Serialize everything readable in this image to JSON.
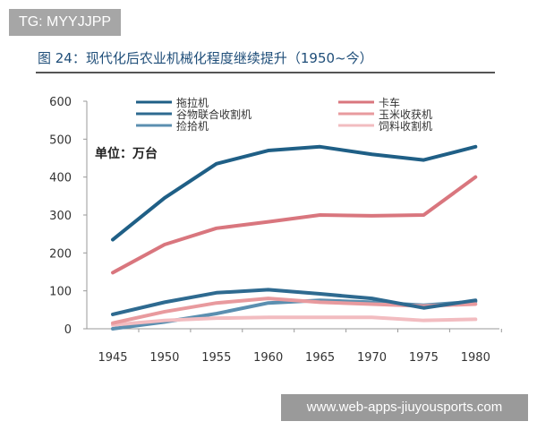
{
  "watermark_top": "TG: MYYJJPP",
  "watermark_bottom": "www.web-apps-jiuyousports.com",
  "chart_data": {
    "type": "line",
    "title": "图 24：现代化后农业机械化程度继续提升（1950~今）",
    "unit_label": "单位：万台",
    "xlabel": "",
    "ylabel": "",
    "x": [
      1945,
      1950,
      1955,
      1960,
      1965,
      1970,
      1975,
      1980
    ],
    "ylim": [
      0,
      600
    ],
    "yticks": [
      0,
      100,
      200,
      300,
      400,
      500,
      600
    ],
    "grid": false,
    "legend_position": "top",
    "series": [
      {
        "name": "拖拉机",
        "color": "#1f5f86",
        "values": [
          235,
          345,
          435,
          470,
          480,
          460,
          445,
          480
        ]
      },
      {
        "name": "卡车",
        "color": "#d9767e",
        "values": [
          148,
          222,
          265,
          282,
          300,
          298,
          300,
          400
        ]
      },
      {
        "name": "谷物联合收割机",
        "color": "#2e6a90",
        "values": [
          38,
          70,
          95,
          103,
          92,
          80,
          55,
          75
        ]
      },
      {
        "name": "玉米收获机",
        "color": "#e89a9e",
        "values": [
          15,
          45,
          68,
          80,
          70,
          65,
          60,
          65
        ]
      },
      {
        "name": "捡拾机",
        "color": "#5b8fb0",
        "values": [
          0,
          18,
          40,
          68,
          75,
          70,
          62,
          72
        ]
      },
      {
        "name": "饲料收割机",
        "color": "#f2bcc0",
        "values": [
          10,
          22,
          28,
          30,
          30,
          30,
          22,
          25
        ]
      }
    ]
  }
}
